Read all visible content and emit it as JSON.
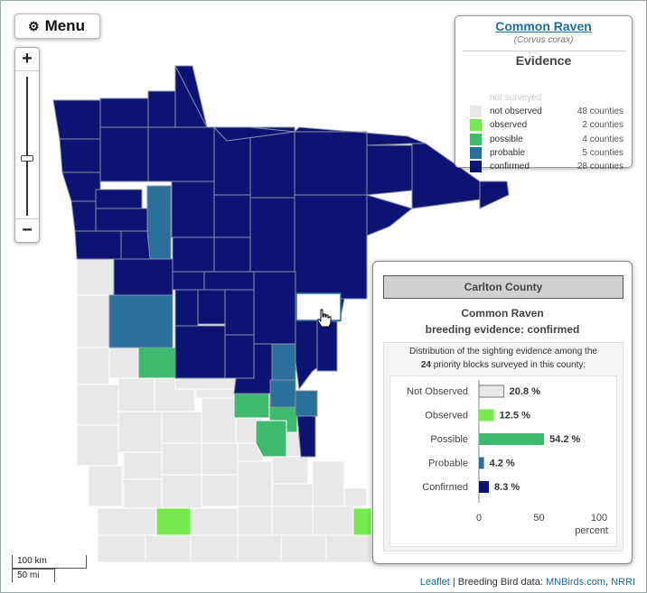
{
  "menu": {
    "label": "Menu",
    "icon": "gear-icon"
  },
  "zoom": {
    "in_label": "+",
    "out_label": "−"
  },
  "legend": {
    "species_name": "Common Raven",
    "scientific_name": "(Corvus corax)",
    "section_title": "Evidence",
    "items": [
      {
        "label": "not surveyed",
        "count": "",
        "color": "#ffffff"
      },
      {
        "label": "not observed",
        "count": "48 counties",
        "color": "#e8e8e8"
      },
      {
        "label": "observed",
        "count": "2 counties",
        "color": "#76ea4e"
      },
      {
        "label": "possible",
        "count": "4 counties",
        "color": "#3dba6e"
      },
      {
        "label": "probable",
        "count": "5 counties",
        "color": "#2b6f9b"
      },
      {
        "label": "confirmed",
        "count": "28 counties",
        "color": "#0d1373"
      }
    ]
  },
  "popup": {
    "county_name": "Carlton County",
    "species": "Common Raven",
    "breeding_status": "breeding evidence: confirmed",
    "description_line1": "Distribution of the sighting evidence among the",
    "description_line2_pre": "",
    "priority_blocks": "24",
    "description_line2_post": "priority blocks surveyed in this county:"
  },
  "chart_data": {
    "type": "bar",
    "orientation": "horizontal",
    "categories": [
      "Not Observed",
      "Observed",
      "Possible",
      "Probable",
      "Confirmed"
    ],
    "values": [
      20.8,
      12.5,
      54.2,
      4.2,
      8.3
    ],
    "value_labels": [
      "20.8 %",
      "12.5 %",
      "54.2 %",
      "4.2 %",
      "8.3 %"
    ],
    "colors": [
      "#e8e8e8",
      "#76ea4e",
      "#3dba6e",
      "#2b6f9b",
      "#0d1373"
    ],
    "x_ticks": [
      "0",
      "50",
      "100"
    ],
    "xlabel": "percent",
    "xlim": [
      0,
      100
    ]
  },
  "scale": {
    "metric": "100 km",
    "imperial": "50 mi"
  },
  "attribution": {
    "leaflet": "Leaflet",
    "separator": " | Breeding Bird data: ",
    "source1": "MNBirds.com",
    "comma": ", ",
    "source2": "NRRI"
  },
  "colors": {
    "confirmed": "#0d1373",
    "probable": "#2b6f9b",
    "possible": "#3dba6e",
    "observed": "#76ea4e",
    "not_observed": "#e8e8e8",
    "selected": "#ffffff"
  }
}
